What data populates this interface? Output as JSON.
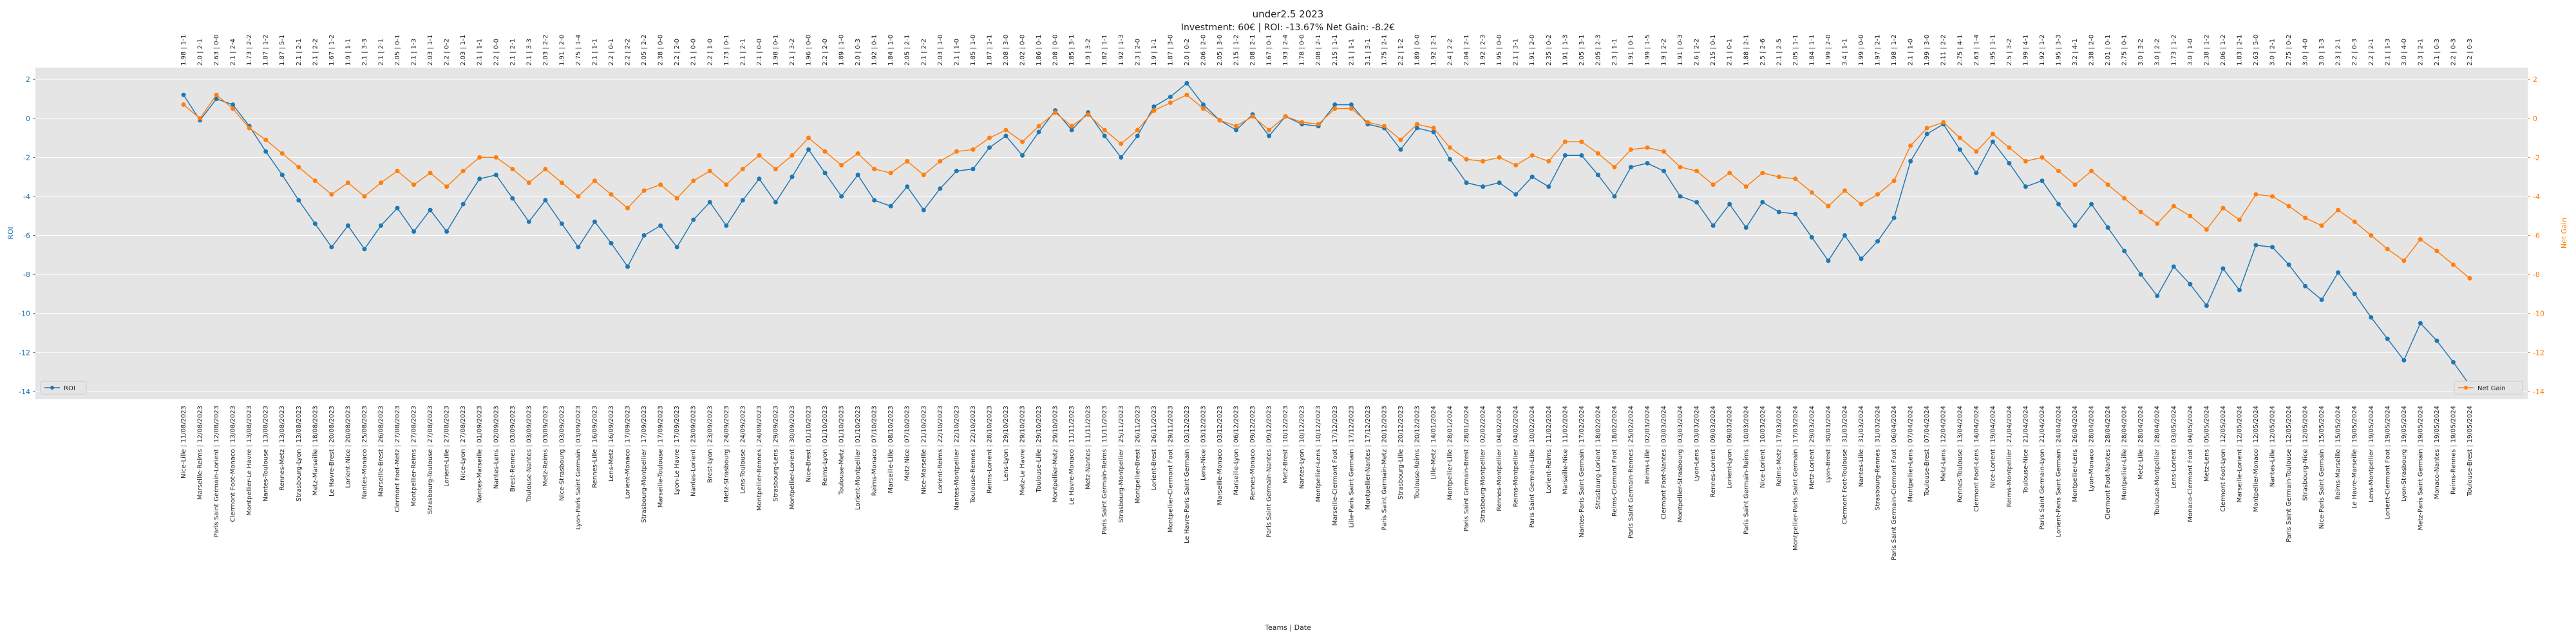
{
  "chart_data": {
    "type": "line",
    "title": "under2.5 2023",
    "subtitle": "Investment: 60€ | ROI: -13.67% Net Gain: -8.2€",
    "x_label": "Teams | Date",
    "y_label": "ROI",
    "y2_label": "Net Gain",
    "grid": true,
    "ylim": [
      -14.4,
      2.6
    ],
    "yticks": [
      -14,
      -12,
      -10,
      -8,
      -6,
      -4,
      -2,
      0,
      2
    ],
    "y2lim": [
      -14.4,
      2.6
    ],
    "y2ticks": [
      -14,
      -12,
      -10,
      -8,
      -6,
      -4,
      -2,
      0,
      2
    ],
    "categories": [
      "Nice-Lille | 11/08/2023",
      "Marseille-Reims | 12/08/2023",
      "Paris Saint Germain-Lorient | 12/08/2023",
      "Clermont Foot-Monaco | 13/08/2023",
      "Montpellier-Le Havre | 13/08/2023",
      "Nantes-Toulouse | 13/08/2023",
      "Rennes-Metz | 13/08/2023",
      "Strasbourg-Lyon | 13/08/2023",
      "Metz-Marseille | 18/08/2023",
      "Le Havre-Brest | 20/08/2023",
      "Lorient-Nice | 20/08/2023",
      "Nantes-Monaco | 25/08/2023",
      "Marseille-Brest | 26/08/2023",
      "Clermont Foot-Metz | 27/08/2023",
      "Montpellier-Reims | 27/08/2023",
      "Strasbourg-Toulouse | 27/08/2023",
      "Lorient-Lille | 27/08/2023",
      "Nice-Lyon | 27/08/2023",
      "Nantes-Marseille | 01/09/2023",
      "Nantes-Lens | 02/09/2023",
      "Brest-Rennes | 03/09/2023",
      "Toulouse-Nantes | 03/09/2023",
      "Metz-Reims | 03/09/2023",
      "Nice-Strasbourg | 03/09/2023",
      "Lyon-Paris Saint Germain | 03/09/2023",
      "Rennes-Lille | 16/09/2023",
      "Lens-Metz | 16/09/2023",
      "Lorient-Monaco | 17/09/2023",
      "Strasbourg-Montpellier | 17/09/2023",
      "Marseille-Toulouse | 17/09/2023",
      "Lyon-Le Havre | 17/09/2023",
      "Nantes-Lorient | 23/09/2023",
      "Brest-Lyon | 23/09/2023",
      "Metz-Strasbourg | 24/09/2023",
      "Lens-Toulouse | 24/09/2023",
      "Montpellier-Rennes | 24/09/2023",
      "Strasbourg-Lens | 29/09/2023",
      "Montpellier-Lorient | 30/09/2023",
      "Nice-Brest | 01/10/2023",
      "Reims-Lyon | 01/10/2023",
      "Toulouse-Metz | 01/10/2023",
      "Lorient-Montpellier | 01/10/2023",
      "Reims-Monaco | 07/10/2023",
      "Marseille-Lille | 08/10/2023",
      "Metz-Nice | 07/10/2023",
      "Nice-Marseille | 21/10/2023",
      "Lorient-Reims | 22/10/2023",
      "Nantes-Montpellier | 22/10/2023",
      "Toulouse-Rennes | 22/10/2023",
      "Reims-Lorient | 28/10/2023",
      "Lens-Lyon | 29/10/2023",
      "Metz-Le Havre | 29/10/2023",
      "Toulouse-Lille | 29/10/2023",
      "Montpellier-Metz | 29/10/2023",
      "Le Havre-Monaco | 11/11/2023",
      "Metz-Nantes | 11/11/2023",
      "Paris Saint Germain-Reims | 11/11/2023",
      "Strasbourg-Montpellier | 25/11/2023",
      "Montpellier-Brest | 26/11/2023",
      "Lorient-Brest | 26/11/2023",
      "Montpellier-Clermont Foot | 29/11/2023",
      "Le Havre-Paris Saint Germain | 03/12/2023",
      "Lens-Nice | 03/12/2023",
      "Marseille-Monaco | 03/12/2023",
      "Marseille-Lyon | 06/12/2023",
      "Rennes-Monaco | 09/12/2023",
      "Paris Saint Germain-Nantes | 09/12/2023",
      "Metz-Brest | 10/12/2023",
      "Nantes-Lyon | 10/12/2023",
      "Montpellier-Lens | 10/12/2023",
      "Marseille-Clermont Foot | 17/12/2023",
      "Lille-Paris Saint Germain | 17/12/2023",
      "Montpellier-Nantes | 17/12/2023",
      "Paris Saint Germain-Metz | 20/12/2023",
      "Strasbourg-Lille | 20/12/2023",
      "Toulouse-Reims | 20/12/2023",
      "Lille-Metz | 14/01/2024",
      "Montpellier-Lille | 28/01/2024",
      "Paris Saint Germain-Brest | 28/01/2024",
      "Strasbourg-Montpellier | 02/02/2024",
      "Rennes-Montpellier | 04/02/2024",
      "Reims-Montpellier | 04/02/2024",
      "Paris Saint Germain-Lille | 10/02/2024",
      "Lorient-Reims | 11/02/2024",
      "Marseille-Nice | 11/02/2024",
      "Nantes-Paris Saint Germain | 17/02/2024",
      "Strasbourg-Lorient | 18/02/2024",
      "Reims-Clermont Foot | 18/02/2024",
      "Paris Saint Germain-Rennes | 25/02/2024",
      "Reims-Lille | 02/03/2024",
      "Clermont Foot-Nantes | 03/03/2024",
      "Montpellier-Strasbourg | 03/03/2024",
      "Lyon-Lens | 03/03/2024",
      "Rennes-Lorient | 09/03/2024",
      "Lorient-Lyon | 09/03/2024",
      "Paris Saint Germain-Reims | 10/03/2024",
      "Nice-Lorient | 10/03/2024",
      "Reims-Metz | 17/03/2024",
      "Montpellier-Paris Saint Germain | 17/03/2024",
      "Metz-Lorient | 29/03/2024",
      "Lyon-Brest | 30/03/2024",
      "Clermont Foot-Toulouse | 31/03/2024",
      "Nantes-Lille | 31/03/2024",
      "Strasbourg-Rennes | 31/03/2024",
      "Paris Saint Germain-Clermont Foot | 06/04/2024",
      "Montpellier-Lens | 07/04/2024",
      "Toulouse-Brest | 07/04/2024",
      "Metz-Lens | 12/04/2024",
      "Rennes-Toulouse | 13/04/2024",
      "Clermont Foot-Lens | 14/04/2024",
      "Nice-Lorient | 19/04/2024",
      "Reims-Montpellier | 21/04/2024",
      "Toulouse-Nice | 21/04/2024",
      "Paris Saint Germain-Lyon | 21/04/2024",
      "Lorient-Paris Saint Germain | 24/04/2024",
      "Montpellier-Lens | 26/04/2024",
      "Lyon-Monaco | 28/04/2024",
      "Clermont Foot-Nantes | 28/04/2024",
      "Montpellier-Lille | 28/04/2024",
      "Metz-Lille | 28/04/2024",
      "Toulouse-Montpellier | 28/04/2024",
      "Lens-Lorient | 03/05/2024",
      "Monaco-Clermont Foot | 04/05/2024",
      "Metz-Lens | 05/05/2024",
      "Clermont Foot-Lyon | 12/05/2024",
      "Marseille-Lorient | 12/05/2024",
      "Montpellier-Monaco | 12/05/2024",
      "Nantes-Lille | 12/05/2024",
      "Paris Saint Germain-Toulouse | 12/05/2024",
      "Strasbourg-Nice | 12/05/2024",
      "Nice-Paris Saint Germain | 15/05/2024",
      "Reims-Marseille | 15/05/2024",
      "Le Havre-Marseille | 19/05/2024",
      "Lens-Montpellier | 19/05/2024",
      "Lorient-Clermont Foot | 19/05/2024",
      "Lyon-Strasbourg | 19/05/2024",
      "Metz-Paris Saint Germain | 19/05/2024",
      "Monaco-Nantes | 19/05/2024",
      "Reims-Rennes | 19/05/2024",
      "Toulouse-Brest | 19/05/2024"
    ],
    "top_labels": [
      "1.98 | 1-1",
      "2.0 | 2-1",
      "2.63 | 0-0",
      "2.1 | 2-4",
      "1.73 | 2-2",
      "1.87 | 1-2",
      "1.87 | 5-1",
      "2.1 | 2-1",
      "2.1 | 2-2",
      "1.67 | 1-2",
      "1.9 | 1-1",
      "2.1 | 3-3",
      "2.1 | 2-1",
      "2.05 | 0-1",
      "2.1 | 1-3",
      "2.03 | 1-1",
      "2.2 | 0-2",
      "2.03 | 1-1",
      "2.1 | 1-1",
      "2.2 | 0-0",
      "2.1 | 2-1",
      "2.1 | 3-3",
      "2.03 | 2-2",
      "1.91 | 2-0",
      "2.75 | 1-4",
      "2.1 | 1-1",
      "2.2 | 0-1",
      "2.2 | 2-2",
      "2.05 | 2-2",
      "2.38 | 0-0",
      "2.2 | 2-0",
      "2.1 | 0-0",
      "2.2 | 1-0",
      "1.73 | 0-1",
      "2.1 | 2-1",
      "2.1 | 0-0",
      "1.98 | 0-1",
      "2.1 | 3-2",
      "1.96 | 0-0",
      "2.2 | 2-0",
      "1.89 | 1-0",
      "2.0 | 0-3",
      "1.92 | 0-1",
      "1.84 | 1-0",
      "2.05 | 2-1",
      "2.1 | 2-2",
      "2.03 | 1-0",
      "2.1 | 1-0",
      "1.85 | 1-0",
      "1.87 | 1-1",
      "2.08 | 3-0",
      "2.02 | 0-0",
      "1.86 | 0-1",
      "2.08 | 0-0",
      "1.85 | 3-1",
      "1.9 | 3-2",
      "1.82 | 1-1",
      "1.92 | 1-3",
      "2.3 | 2-0",
      "1.9 | 1-1",
      "1.87 | 3-0",
      "2.0 | 0-2",
      "2.06 | 2-0",
      "2.05 | 3-0",
      "2.15 | 1-2",
      "2.08 | 2-1",
      "1.67 | 0-1",
      "1.93 | 2-4",
      "1.78 | 0-0",
      "2.08 | 2-1",
      "2.15 | 1-1",
      "2.1 | 1-1",
      "3.1 | 3-1",
      "1.75 | 2-1",
      "2.2 | 1-2",
      "1.89 | 0-0",
      "1.92 | 2-1",
      "2.4 | 2-2",
      "2.04 | 2-1",
      "1.92 | 2-3",
      "1.95 | 0-0",
      "2.1 | 3-1",
      "1.91 | 2-0",
      "2.35 | 0-2",
      "1.91 | 1-3",
      "2.05 | 3-1",
      "2.05 | 2-3",
      "2.3 | 1-1",
      "1.91 | 0-1",
      "1.99 | 1-5",
      "1.9 | 2-2",
      "1.91 | 0-3",
      "2.6 | 2-2",
      "2.15 | 0-1",
      "2.1 | 0-1",
      "1.88 | 2-1",
      "2.5 | 2-6",
      "2.1 | 2-5",
      "2.05 | 1-1",
      "1.84 | 1-1",
      "1.99 | 2-0",
      "3.4 | 1-1",
      "1.99 | 0-0",
      "1.97 | 2-1",
      "1.98 | 1-2",
      "2.1 | 1-0",
      "1.99 | 3-0",
      "2.11 | 2-2",
      "2.75 | 4-1",
      "2.63 | 1-4",
      "1.95 | 1-1",
      "2.5 | 3-2",
      "1.99 | 4-1",
      "1.92 | 1-2",
      "1.95 | 3-3",
      "3.2 | 4-1",
      "2.38 | 2-0",
      "2.01 | 0-1",
      "2.75 | 0-1",
      "3.0 | 3-2",
      "3.0 | 2-2",
      "1.73 | 1-2",
      "3.0 | 1-0",
      "2.38 | 1-2",
      "2.06 | 1-2",
      "1.83 | 2-1",
      "2.63 | 5-0",
      "3.0 | 2-1",
      "2.75 | 0-2",
      "3.0 | 4-0",
      "3.0 | 1-3",
      "2.3 | 2-1",
      "2.2 | 0-3",
      "2.2 | 2-1",
      "2.1 | 1-3",
      "3.0 | 4-0",
      "2.3 | 2-1",
      "2.1 | 0-3",
      "2.2 | 0-3",
      "2.2 | 0-3"
    ],
    "series": [
      {
        "name": "ROI",
        "color": "#1f77b4",
        "axis": "y",
        "legend_loc": "lower left",
        "values": [
          1.2,
          -0.1,
          1.0,
          0.7,
          -0.4,
          -1.7,
          -2.9,
          -4.2,
          -5.4,
          -6.6,
          -5.5,
          -6.7,
          -5.5,
          -4.6,
          -5.8,
          -4.7,
          -5.8,
          -4.4,
          -3.1,
          -2.9,
          -4.1,
          -5.3,
          -4.2,
          -5.4,
          -6.6,
          -5.3,
          -6.4,
          -7.6,
          -6.0,
          -5.5,
          -6.6,
          -5.2,
          -4.3,
          -5.5,
          -4.2,
          -3.1,
          -4.3,
          -3.0,
          -1.6,
          -2.8,
          -4.0,
          -2.9,
          -4.2,
          -4.5,
          -3.5,
          -4.7,
          -3.6,
          -2.7,
          -2.6,
          -1.5,
          -0.9,
          -1.9,
          -0.7,
          0.4,
          -0.6,
          0.3,
          -0.9,
          -2.0,
          -0.9,
          0.6,
          1.1,
          1.8,
          0.7,
          -0.1,
          -0.6,
          0.2,
          -0.9,
          0.1,
          -0.3,
          -0.4,
          0.7,
          0.7,
          -0.3,
          -0.5,
          -1.6,
          -0.5,
          -0.7,
          -2.1,
          -3.3,
          -3.5,
          -3.3,
          -3.9,
          -3.0,
          -3.5,
          -1.9,
          -1.9,
          -2.9,
          -4.0,
          -2.5,
          -2.3,
          -2.7,
          -4.0,
          -4.3,
          -5.5,
          -4.4,
          -5.6,
          -4.3,
          -4.8,
          -4.9,
          -6.1,
          -7.3,
          -6.0,
          -7.2,
          -6.3,
          -5.1,
          -2.2,
          -0.8,
          -0.3,
          -1.6,
          -2.8,
          -1.2,
          -2.3,
          -3.5,
          -3.2,
          -4.4,
          -5.5,
          -4.4,
          -5.6,
          -6.8,
          -8.0,
          -9.1,
          -7.6,
          -8.5,
          -9.6,
          -7.7,
          -8.8,
          -6.5,
          -6.6,
          -7.5,
          -8.6,
          -9.3,
          -7.9,
          -9.0,
          -10.2,
          -11.3,
          -12.4,
          -10.5,
          -11.4,
          -12.5,
          -13.67
        ]
      },
      {
        "name": "Net Gain",
        "color": "#ff7f0e",
        "axis": "y2",
        "legend_loc": "lower right",
        "values": [
          0.7,
          0.0,
          1.2,
          0.5,
          -0.5,
          -1.1,
          -1.8,
          -2.5,
          -3.2,
          -3.9,
          -3.3,
          -4.0,
          -3.3,
          -2.7,
          -3.4,
          -2.8,
          -3.5,
          -2.7,
          -2.0,
          -2.0,
          -2.6,
          -3.3,
          -2.6,
          -3.3,
          -4.0,
          -3.2,
          -3.9,
          -4.6,
          -3.7,
          -3.4,
          -4.1,
          -3.2,
          -2.7,
          -3.4,
          -2.6,
          -1.9,
          -2.6,
          -1.9,
          -1.0,
          -1.7,
          -2.4,
          -1.8,
          -2.6,
          -2.8,
          -2.2,
          -2.9,
          -2.2,
          -1.7,
          -1.6,
          -1.0,
          -0.6,
          -1.2,
          -0.4,
          0.3,
          -0.4,
          0.2,
          -0.6,
          -1.3,
          -0.6,
          0.4,
          0.8,
          1.2,
          0.5,
          -0.1,
          -0.4,
          0.1,
          -0.6,
          0.1,
          -0.2,
          -0.3,
          0.5,
          0.5,
          -0.2,
          -0.4,
          -1.1,
          -0.3,
          -0.5,
          -1.5,
          -2.1,
          -2.2,
          -2.0,
          -2.4,
          -1.9,
          -2.2,
          -1.2,
          -1.2,
          -1.8,
          -2.5,
          -1.6,
          -1.5,
          -1.7,
          -2.5,
          -2.7,
          -3.4,
          -2.8,
          -3.5,
          -2.8,
          -3.0,
          -3.1,
          -3.8,
          -4.5,
          -3.7,
          -4.4,
          -3.9,
          -3.2,
          -1.4,
          -0.5,
          -0.2,
          -1.0,
          -1.7,
          -0.8,
          -1.5,
          -2.2,
          -2.0,
          -2.7,
          -3.4,
          -2.7,
          -3.4,
          -4.1,
          -4.8,
          -5.4,
          -4.5,
          -5.0,
          -5.7,
          -4.6,
          -5.2,
          -3.9,
          -4.0,
          -4.5,
          -5.1,
          -5.5,
          -4.7,
          -5.3,
          -6.0,
          -6.7,
          -7.3,
          -6.2,
          -6.8,
          -7.5,
          -8.2
        ]
      }
    ]
  }
}
